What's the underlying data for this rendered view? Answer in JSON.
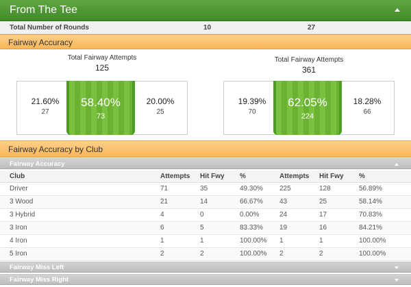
{
  "header": {
    "title": "From The Tee"
  },
  "rounds": {
    "label": "Total Number of Rounds",
    "value_a": "10",
    "value_b": "27"
  },
  "fairway_accuracy": {
    "title": "Fairway Accuracy",
    "cards": [
      {
        "label": "Total Fairway Attempts",
        "total": "125",
        "left_pct": "21.60%",
        "left_count": "27",
        "center_pct": "58.40%",
        "center_count": "73",
        "right_pct": "20.00%",
        "right_count": "25"
      },
      {
        "label": "Total Fairway Attempts",
        "total": "361",
        "left_pct": "19.39%",
        "left_count": "70",
        "center_pct": "62.05%",
        "center_count": "224",
        "right_pct": "18.28%",
        "right_count": "66"
      }
    ]
  },
  "by_club": {
    "title": "Fairway Accuracy by Club",
    "sections": [
      "Fairway Accuracy",
      "Fairway Miss Left",
      "Fairway Miss Right"
    ],
    "columns": [
      "Club",
      "Attempts",
      "Hit Fwy",
      "%",
      "Attempts",
      "Hit Fwy",
      "%"
    ],
    "rows": [
      [
        "Driver",
        "71",
        "35",
        "49.30%",
        "225",
        "128",
        "56.89%"
      ],
      [
        "3 Wood",
        "21",
        "14",
        "66.67%",
        "43",
        "25",
        "58.14%"
      ],
      [
        "3 Hybrid",
        "4",
        "0",
        "0.00%",
        "24",
        "17",
        "70.83%"
      ],
      [
        "3 Iron",
        "6",
        "5",
        "83.33%",
        "19",
        "16",
        "84.21%"
      ],
      [
        "4 Iron",
        "1",
        "1",
        "100.00%",
        "1",
        "1",
        "100.00%"
      ],
      [
        "5 Iron",
        "2",
        "2",
        "100.00%",
        "2",
        "2",
        "100.00%"
      ]
    ]
  }
}
